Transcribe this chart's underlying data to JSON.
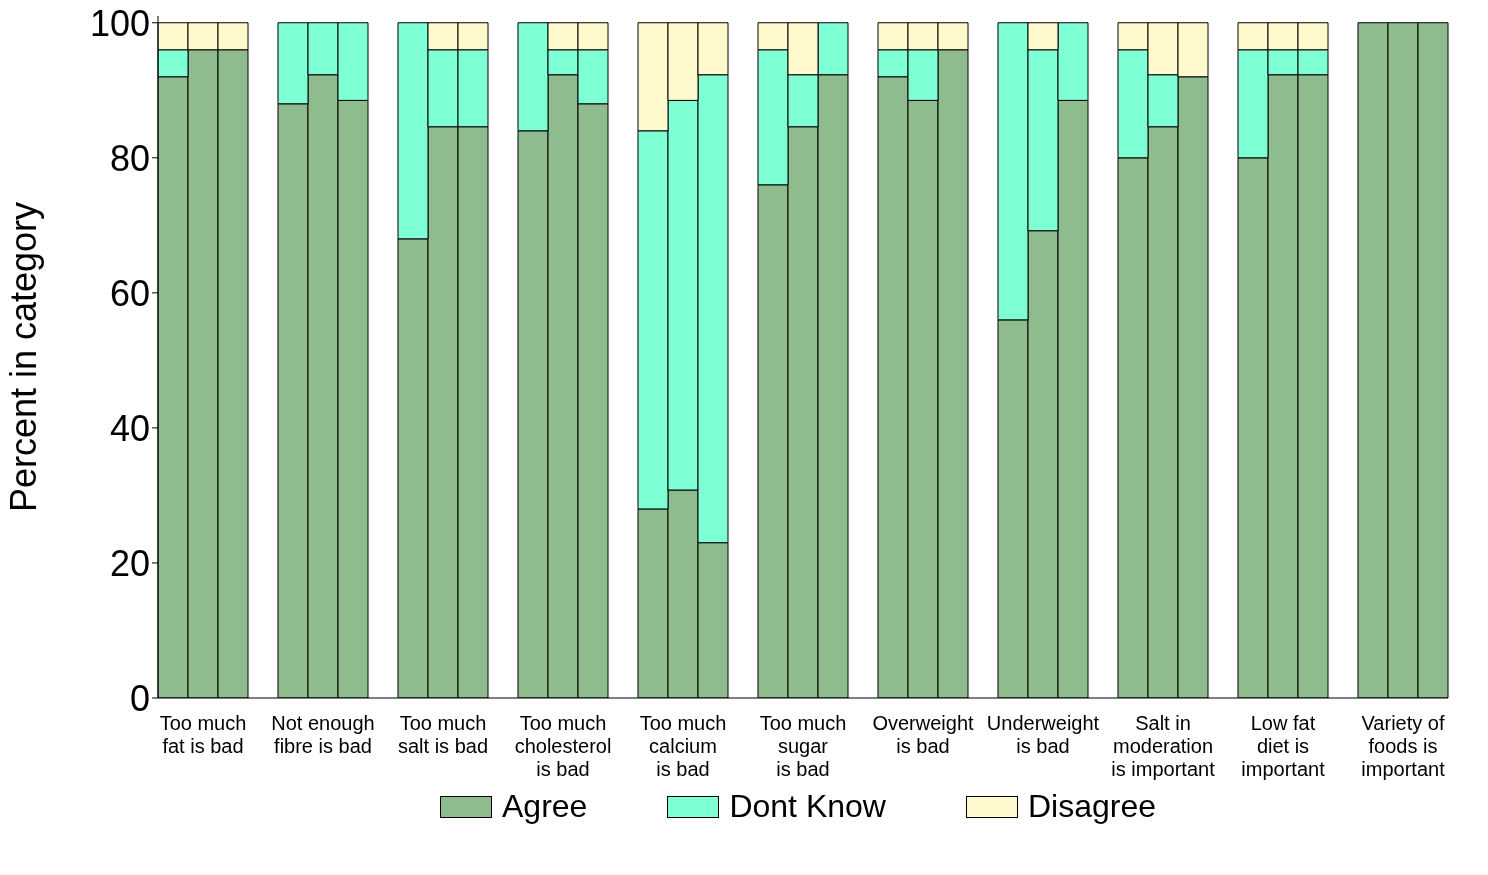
{
  "chart_data": {
    "type": "bar",
    "stacked": true,
    "ylabel": "Percent in category",
    "ylim": [
      0,
      101
    ],
    "yticks": [
      0,
      20,
      40,
      60,
      80,
      100
    ],
    "legend": "bottom",
    "categories": [
      null,
      "Too much\nfat is bad",
      null,
      null,
      null,
      "Not enough\nfibre is bad",
      null,
      null,
      null,
      "Too much\nsalt is bad",
      null,
      null,
      null,
      "Too much\ncholesterol\nis bad",
      null,
      null,
      null,
      "Too much\ncalcium\nis bad",
      null,
      null,
      null,
      "Too much\nsugar\nis bad",
      null,
      null,
      null,
      "Overweight\nis bad",
      null,
      null,
      null,
      "Underweight\nis bad",
      null,
      null,
      null,
      "Salt in\nmoderation\nis important",
      null,
      null,
      null,
      "Low fat\ndiet is\nimportant",
      null,
      null,
      null,
      "Variety of\nfoods is\nimportant",
      null
    ],
    "series": [
      {
        "name": "Agree",
        "color": "#8fbc8f",
        "values": [
          92,
          96,
          96,
          null,
          88,
          92.3,
          88.5,
          null,
          68,
          84.6,
          84.6,
          null,
          84,
          92.3,
          88,
          null,
          28,
          30.8,
          23,
          null,
          76,
          84.6,
          92.3,
          null,
          92,
          88.5,
          96,
          null,
          56,
          69.2,
          88.5,
          null,
          80,
          84.6,
          92,
          null,
          80,
          92.3,
          92.3,
          null,
          100,
          100,
          100
        ]
      },
      {
        "name": "Dont Know",
        "color": "#7fffd4",
        "values": [
          4,
          0,
          0,
          null,
          12,
          7.7,
          11.5,
          null,
          32,
          11.4,
          11.4,
          null,
          16,
          3.7,
          8,
          null,
          56,
          57.7,
          69.3,
          null,
          20,
          7.7,
          7.7,
          null,
          4,
          7.5,
          0,
          null,
          44,
          26.8,
          11.5,
          null,
          16,
          7.7,
          0,
          null,
          16,
          3.7,
          3.7,
          null,
          0,
          0,
          0
        ]
      },
      {
        "name": "Disagree",
        "color": "#fffacd",
        "values": [
          4,
          4,
          4,
          null,
          0,
          0,
          0,
          null,
          0,
          4,
          4,
          null,
          0,
          4,
          4,
          null,
          16,
          11.5,
          7.7,
          null,
          4,
          7.7,
          0,
          null,
          4,
          4,
          4,
          null,
          0,
          4,
          0,
          null,
          4,
          7.7,
          8,
          null,
          4,
          4,
          4,
          null,
          0,
          0,
          0
        ]
      }
    ]
  }
}
